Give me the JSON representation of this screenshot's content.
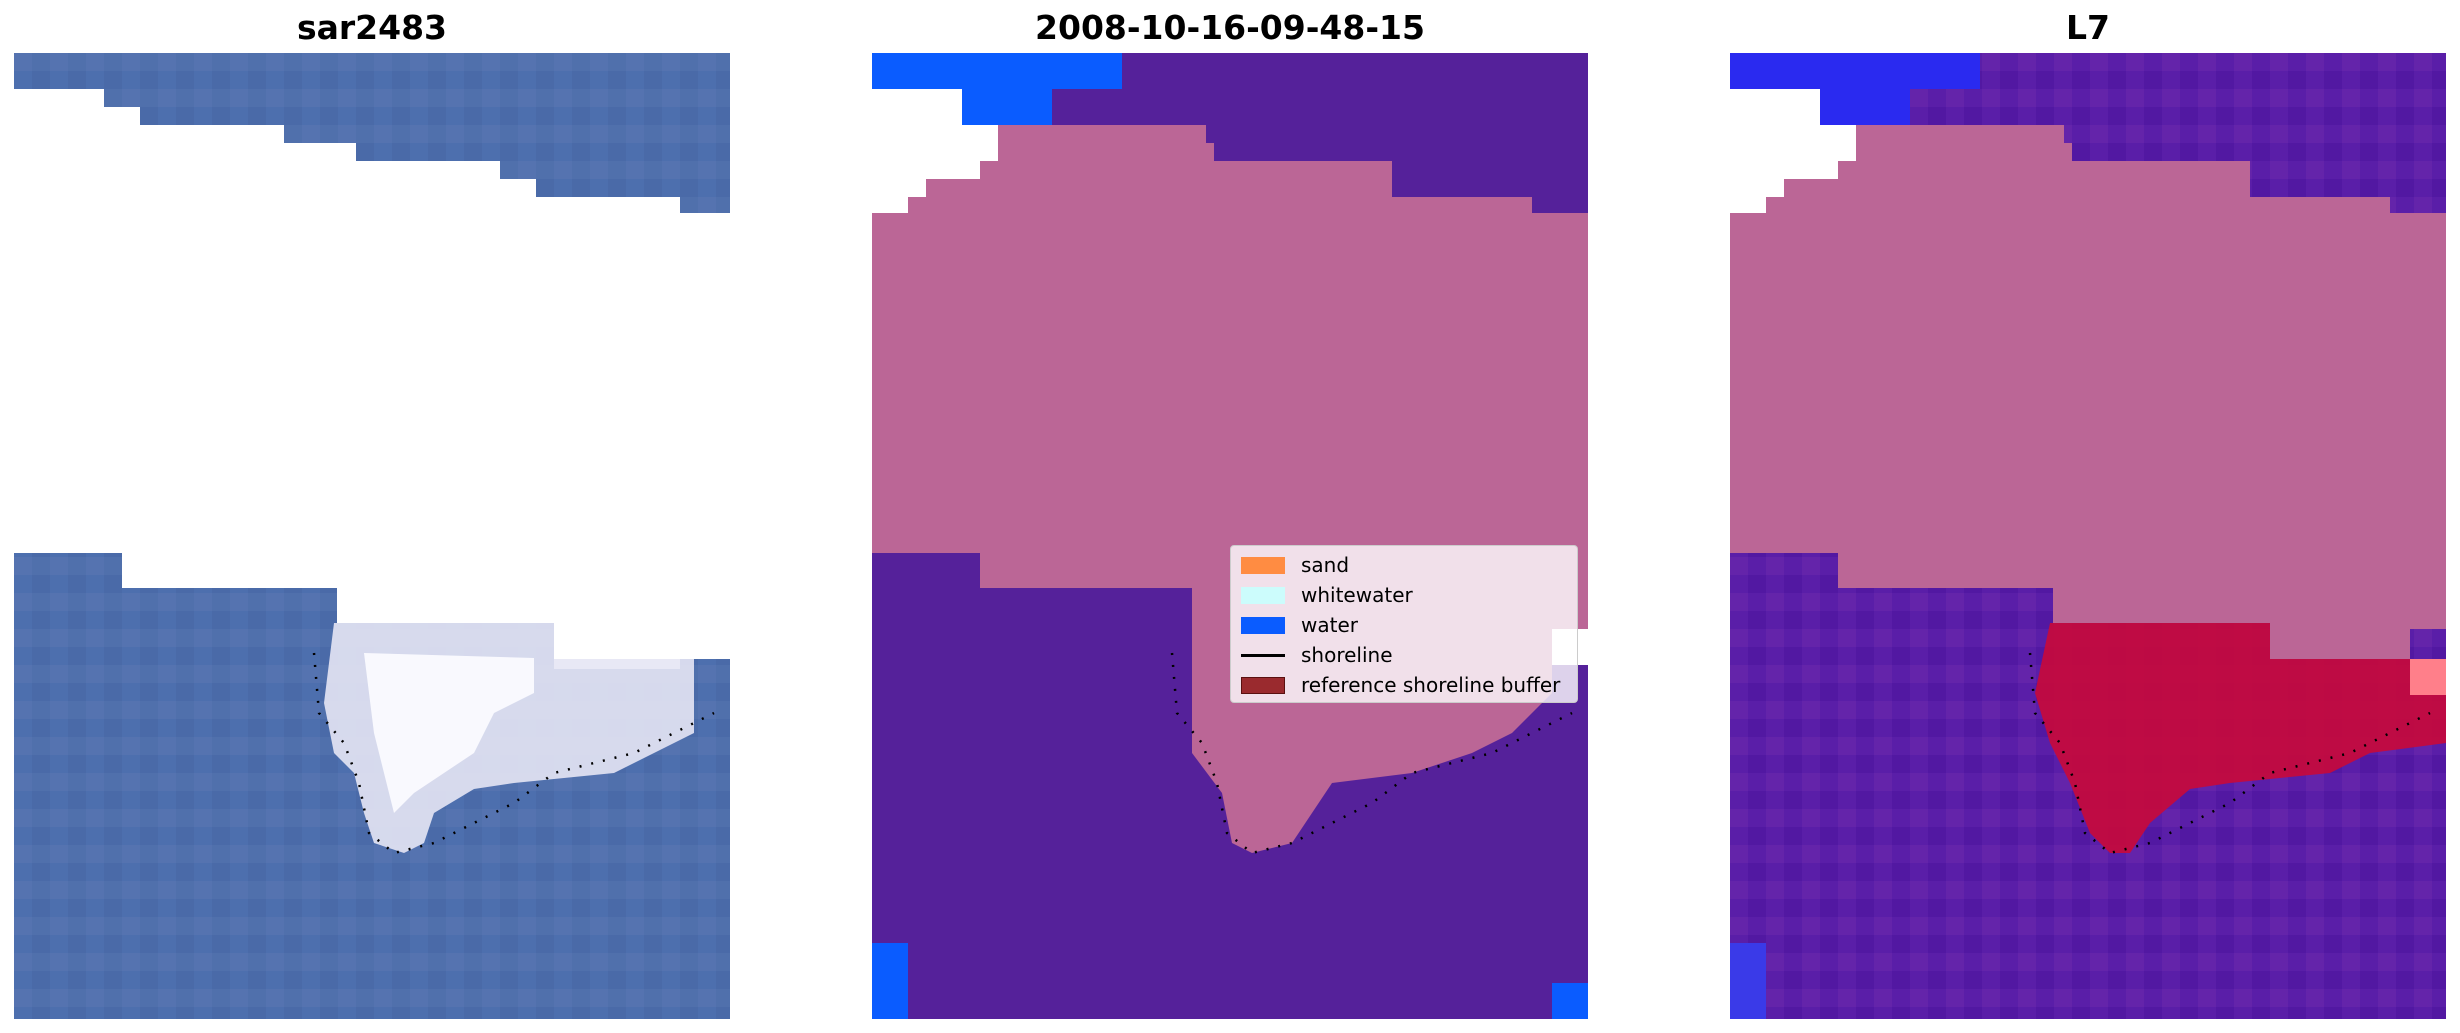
{
  "panels": [
    {
      "title": "sar2483",
      "kind": "rgb"
    },
    {
      "title": "2008-10-16-09-48-15",
      "kind": "classified"
    },
    {
      "title": "L7",
      "kind": "probability"
    }
  ],
  "legend": {
    "placement": "center-right of middle panel",
    "items": [
      {
        "label": "sand",
        "kind": "patch",
        "color": "#ff8c42"
      },
      {
        "label": "whitewater",
        "kind": "patch",
        "color": "#ccfcfc"
      },
      {
        "label": "water",
        "kind": "patch",
        "color": "#0a5cff"
      },
      {
        "label": "shoreline",
        "kind": "line",
        "color": "#000000"
      },
      {
        "label": "reference shoreline buffer",
        "kind": "patch",
        "color": "#9a2a2e"
      }
    ]
  },
  "colors": {
    "sea_rgb": "#4d6fae",
    "masked": "#ffffff",
    "class_water_overlay": "#55219a",
    "class_land_overlay": "#bb6696",
    "class_water_edge": "#0a5cff",
    "prob_high": "#c70a3c",
    "prob_low": "#5a1ea8"
  }
}
